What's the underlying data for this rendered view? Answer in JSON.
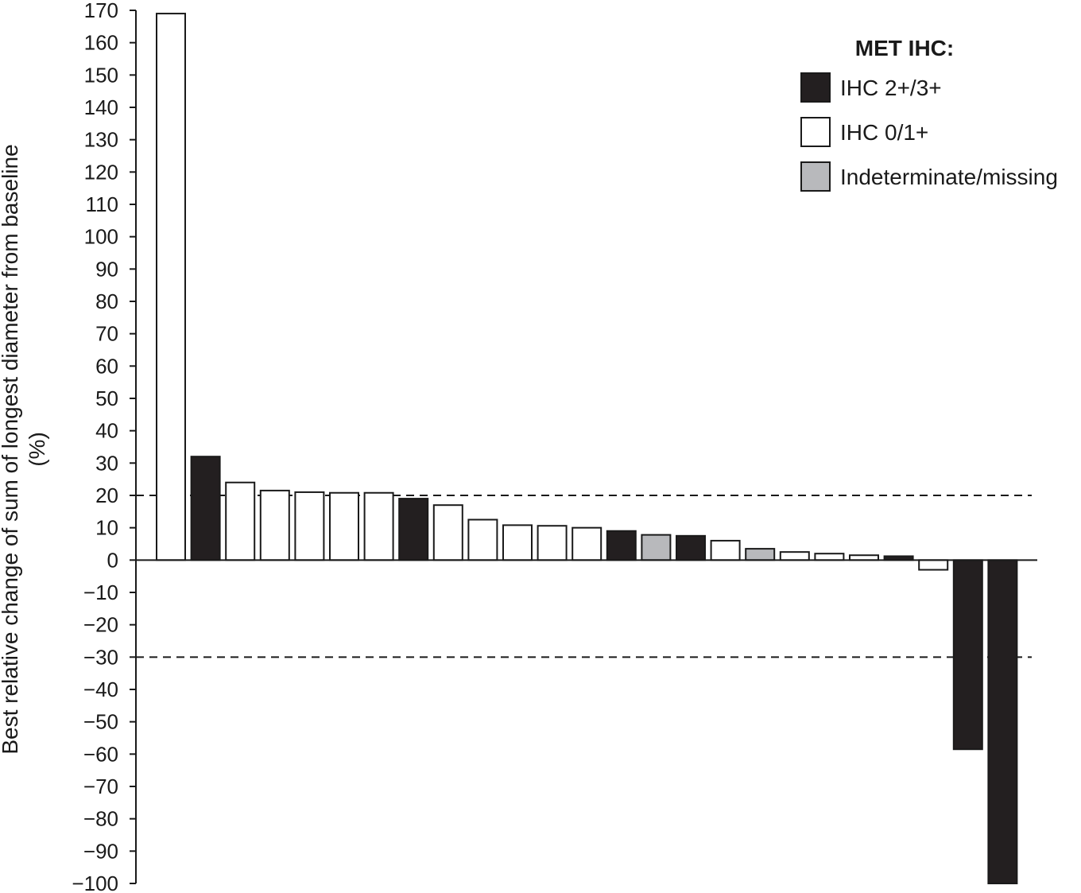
{
  "chart_data": {
    "type": "bar",
    "title": "",
    "ylabel": "Best relative change of sum of longest diameter from baseline",
    "ylabel_unit": "(%)",
    "xlabel": "",
    "ylim": [
      -100,
      170
    ],
    "y_ticks": [
      170,
      160,
      150,
      140,
      130,
      120,
      110,
      100,
      90,
      80,
      70,
      60,
      50,
      40,
      30,
      20,
      10,
      0,
      -10,
      -20,
      -30,
      -40,
      -50,
      -60,
      -70,
      -80,
      -90,
      -100
    ],
    "y_tick_labels": [
      "170",
      "160",
      "150",
      "140",
      "130",
      "120",
      "110",
      "100",
      "90",
      "80",
      "70",
      "60",
      "50",
      "40",
      "30",
      "20",
      "10",
      "0",
      "−10",
      "−20",
      "−30",
      "−40",
      "−50",
      "−60",
      "−70",
      "−80",
      "−90",
      "−100"
    ],
    "reference_lines": [
      20,
      -30
    ],
    "grid": false,
    "legend": {
      "title": "MET IHC:",
      "position": "top-right",
      "entries": [
        {
          "label": "IHC 2+/3+",
          "group": "ihc23",
          "color": "#231f20"
        },
        {
          "label": "IHC 0/1+",
          "group": "ihc01",
          "color": "#ffffff"
        },
        {
          "label": "Indeterminate/missing",
          "group": "indet",
          "color": "#b8b9bc"
        }
      ]
    },
    "bars": [
      {
        "value": 169,
        "group": "ihc01"
      },
      {
        "value": 32,
        "group": "ihc23"
      },
      {
        "value": 24,
        "group": "ihc01"
      },
      {
        "value": 21.5,
        "group": "ihc01"
      },
      {
        "value": 21,
        "group": "ihc01"
      },
      {
        "value": 20.8,
        "group": "ihc01"
      },
      {
        "value": 20.8,
        "group": "ihc01"
      },
      {
        "value": 19,
        "group": "ihc23"
      },
      {
        "value": 17,
        "group": "ihc01"
      },
      {
        "value": 12.5,
        "group": "ihc01"
      },
      {
        "value": 10.8,
        "group": "ihc01"
      },
      {
        "value": 10.6,
        "group": "ihc01"
      },
      {
        "value": 10,
        "group": "ihc01"
      },
      {
        "value": 9,
        "group": "ihc23"
      },
      {
        "value": 7.8,
        "group": "indet"
      },
      {
        "value": 7.5,
        "group": "ihc23"
      },
      {
        "value": 6,
        "group": "ihc01"
      },
      {
        "value": 3.5,
        "group": "indet"
      },
      {
        "value": 2.5,
        "group": "ihc01"
      },
      {
        "value": 2,
        "group": "ihc01"
      },
      {
        "value": 1.5,
        "group": "ihc01"
      },
      {
        "value": 1.2,
        "group": "ihc23"
      },
      {
        "value": -3,
        "group": "ihc01"
      },
      {
        "value": -58.5,
        "group": "ihc23"
      },
      {
        "value": -100,
        "group": "ihc23"
      }
    ]
  }
}
